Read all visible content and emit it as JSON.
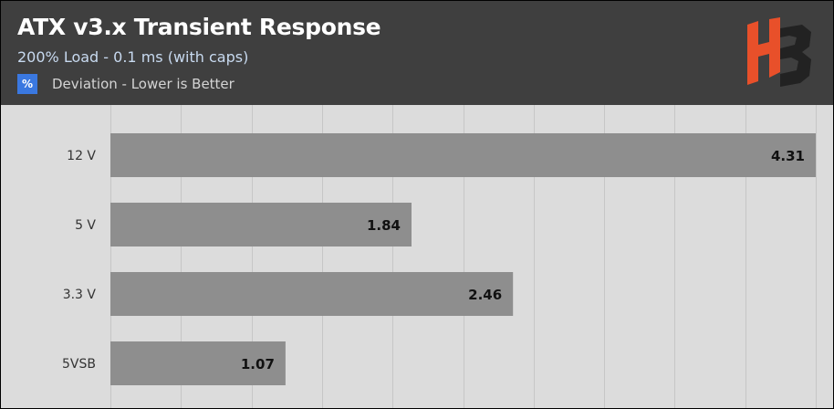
{
  "header": {
    "title": "ATX v3.x Transient Response",
    "subtitle": "200% Load - 0.1 ms (with caps)",
    "unit_badge": "%",
    "note": "Deviation - Lower is Better",
    "logo": "HB"
  },
  "colors": {
    "header_bg": "#3f3f3f",
    "plot_bg": "#dcdcdc",
    "bar": "#8e8e8e",
    "accent": "#3a78e0",
    "logo_orange": "#e8502a",
    "logo_dark": "#222222"
  },
  "chart_data": {
    "type": "bar",
    "orientation": "horizontal",
    "categories": [
      "12 V",
      "5 V",
      "3.3 V",
      "5VSB"
    ],
    "values": [
      4.31,
      1.84,
      2.46,
      1.07
    ],
    "value_labels": [
      "4.31",
      "1.84",
      "2.46",
      "1.07"
    ],
    "xlim": [
      0,
      4.31
    ],
    "grid": true,
    "legend": "none"
  }
}
